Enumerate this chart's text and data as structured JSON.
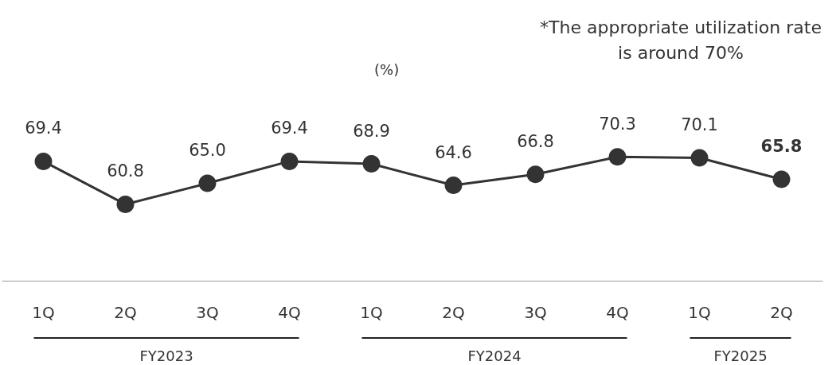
{
  "chart_data": {
    "type": "line",
    "categories": [
      "1Q",
      "2Q",
      "3Q",
      "4Q",
      "1Q",
      "2Q",
      "3Q",
      "4Q",
      "1Q",
      "2Q"
    ],
    "series": [
      {
        "color": "#333333",
        "values": [
          69.4,
          60.8,
          65.0,
          69.4,
          68.9,
          64.6,
          66.8,
          70.3,
          70.1,
          65.8
        ],
        "value_labels": [
          "69.4",
          "60.8",
          "65.0",
          "69.4",
          "68.9",
          "64.6",
          "66.8",
          "70.3",
          "70.1",
          "65.8"
        ]
      }
    ],
    "marker": "circle",
    "line_style": "solid",
    "grid": false,
    "tick_labels": "x",
    "annotations": [
      "(%)",
      "*The appropriate utilization rate\nis around 70%",
      "FY2023",
      "FY2024",
      "FY2025"
    ]
  }
}
